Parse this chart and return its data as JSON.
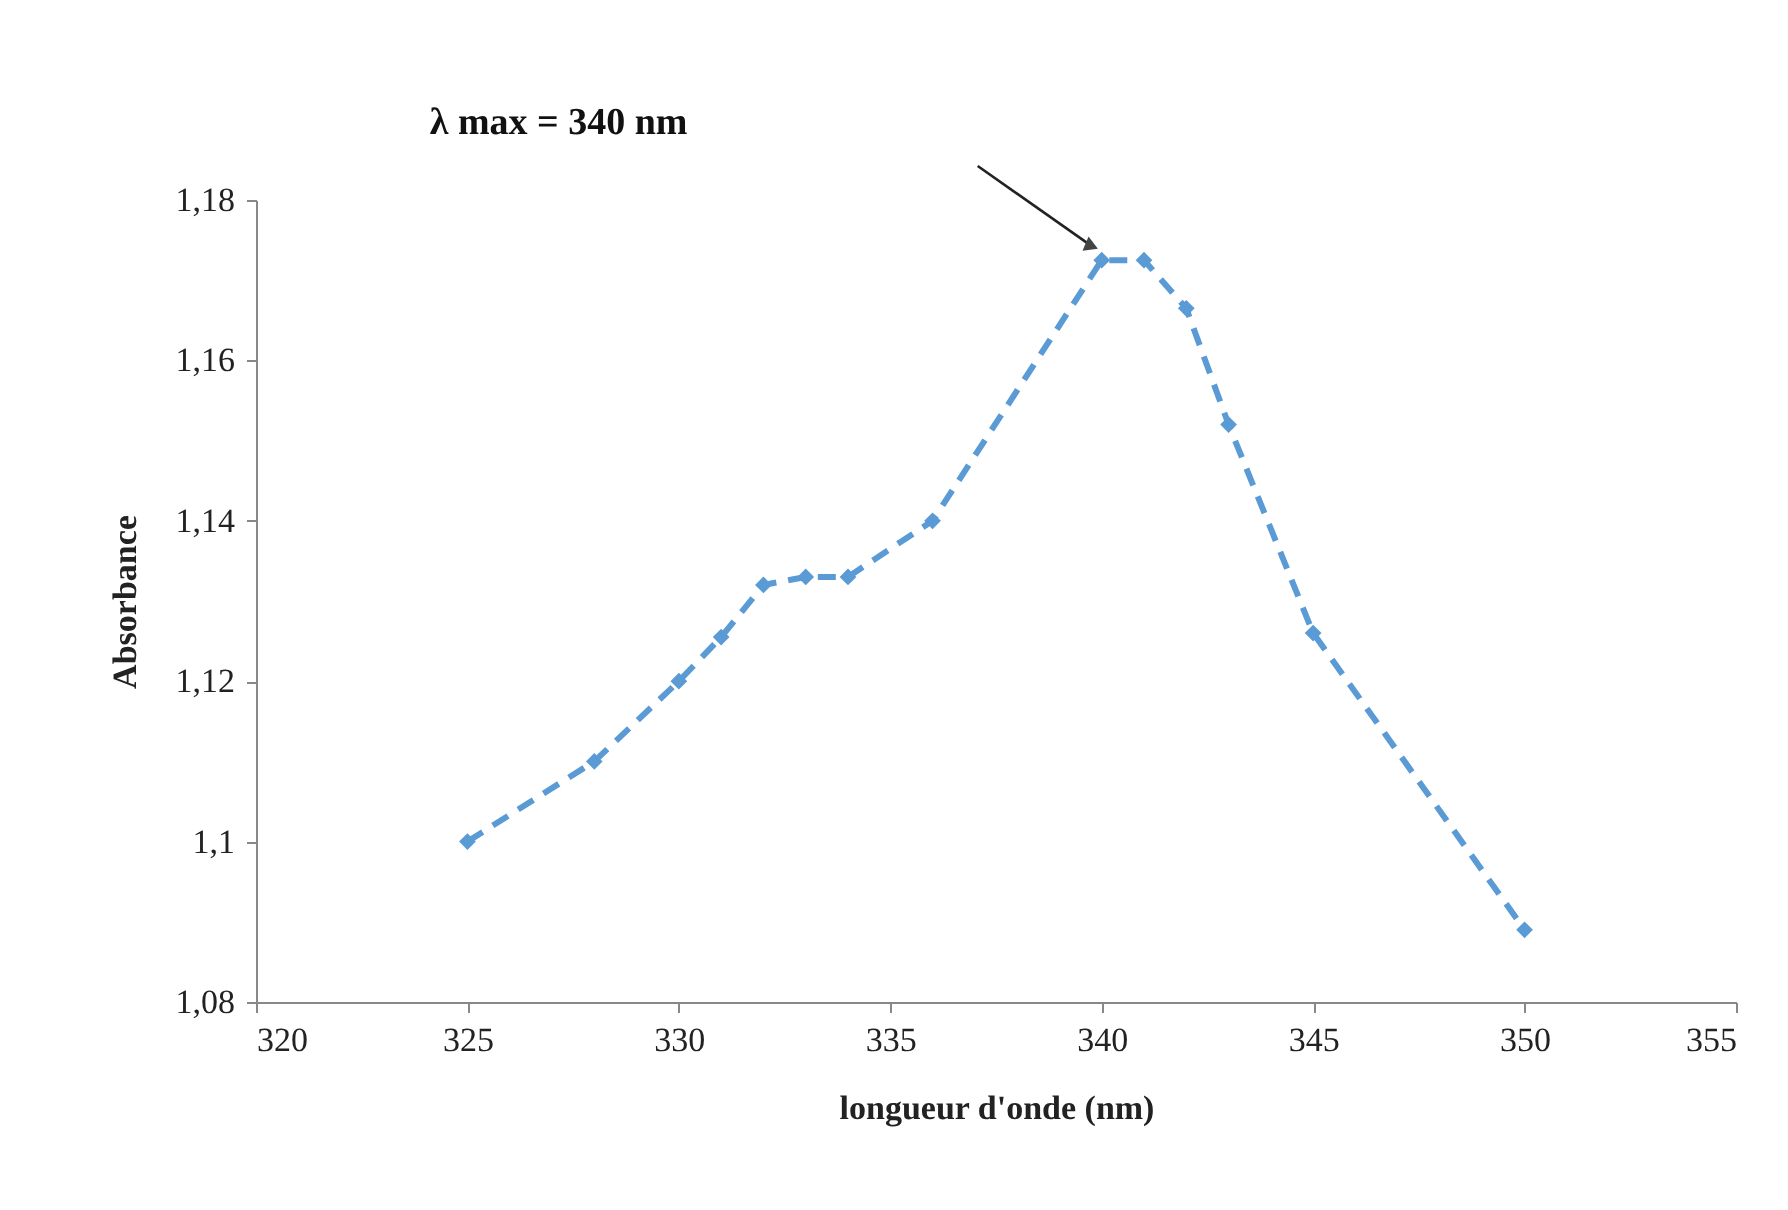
{
  "chart_data": {
    "type": "line",
    "xlabel": "longueur d'onde (nm)",
    "ylabel": "Absorbance",
    "x": [
      325,
      328,
      330,
      331,
      332,
      333,
      334,
      336,
      340,
      341,
      342,
      343,
      345,
      350
    ],
    "series": [
      {
        "color": "#5b9bd5",
        "values": [
          1.1,
          1.11,
          1.12,
          1.1255,
          1.132,
          1.133,
          1.133,
          1.14,
          1.1725,
          1.1725,
          1.1665,
          1.152,
          1.126,
          1.089
        ]
      }
    ],
    "xlim": [
      320,
      355
    ],
    "xticks": [
      320,
      325,
      330,
      335,
      340,
      345,
      350,
      355
    ],
    "ylim": [
      1.08,
      1.18
    ],
    "yticks": [
      {
        "value": 1.08,
        "label": "1,08"
      },
      {
        "value": 1.1,
        "label": "1,1"
      },
      {
        "value": 1.12,
        "label": "1,12"
      },
      {
        "value": 1.14,
        "label": "1,14"
      },
      {
        "value": 1.16,
        "label": "1,16"
      },
      {
        "value": 1.18,
        "label": "1,18"
      }
    ],
    "annotations": [
      "λ max = 340 nm"
    ],
    "marker": "diamond",
    "line_style": "dashed",
    "grid": false
  }
}
